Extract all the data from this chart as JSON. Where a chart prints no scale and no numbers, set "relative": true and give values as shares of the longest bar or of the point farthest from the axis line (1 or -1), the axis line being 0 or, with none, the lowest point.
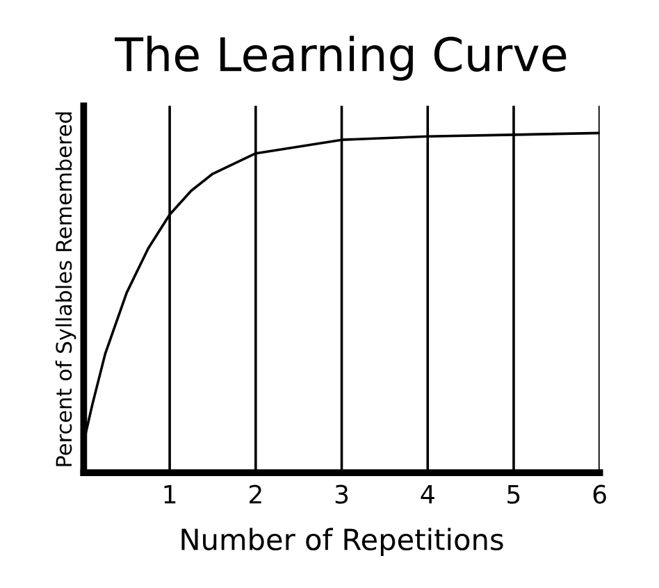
{
  "chart_data": {
    "type": "line",
    "title": "The Learning Curve",
    "xlabel": "Number of Repetitions",
    "ylabel": "Percent of Syllables Remembered",
    "relative": true,
    "x": [
      0,
      0.1,
      0.25,
      0.5,
      0.75,
      1,
      1.25,
      1.5,
      1.75,
      2,
      2.5,
      3,
      4,
      5,
      6
    ],
    "series": [
      {
        "color": "#000000",
        "values": [
          0.09,
          0.2,
          0.35,
          0.53,
          0.66,
          0.76,
          0.83,
          0.88,
          0.91,
          0.94,
          0.96,
          0.98,
          0.99,
          0.995,
          1
        ]
      }
    ],
    "xlim": [
      0,
      6
    ],
    "xticks": [
      1,
      2,
      3,
      4,
      5,
      6
    ],
    "grid": "x",
    "marker": "none",
    "line_style": "solid"
  }
}
